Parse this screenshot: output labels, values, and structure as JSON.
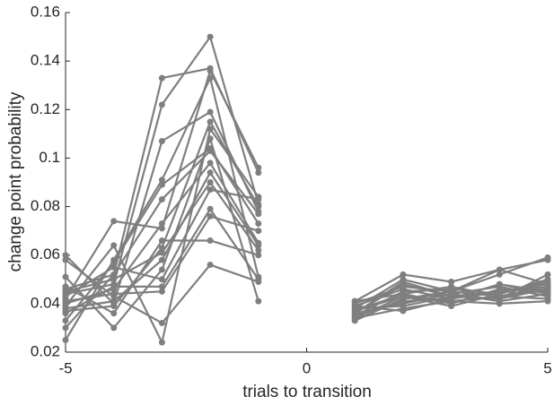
{
  "chart_data": {
    "type": "line",
    "xlabel": "trials to transition",
    "ylabel": "change point probability",
    "x": [
      -5,
      -4,
      -3,
      -2,
      -1,
      0,
      1,
      2,
      3,
      4,
      5
    ],
    "color": "#7f7f7f",
    "xlim": [
      -5,
      5
    ],
    "xticks": [
      -5,
      0,
      5
    ],
    "ylim": [
      0.02,
      0.16
    ],
    "yticks": [
      0.02,
      0.04,
      0.06,
      0.08,
      0.1,
      0.12,
      0.14,
      0.16
    ],
    "grid": false,
    "series": [
      {
        "values": [
          0.046,
          0.052,
          0.133,
          0.137,
          0.094,
          null,
          0.041,
          0.052,
          0.049,
          0.054,
          0.058
        ]
      },
      {
        "values": [
          0.044,
          0.048,
          0.122,
          0.15,
          0.081,
          null,
          0.038,
          0.05,
          0.045,
          0.052,
          0.059
        ]
      },
      {
        "values": [
          0.042,
          0.074,
          0.071,
          0.136,
          0.096,
          null,
          0.036,
          0.048,
          0.043,
          0.042,
          0.052
        ]
      },
      {
        "values": [
          0.06,
          0.04,
          0.107,
          0.119,
          0.078,
          null,
          0.035,
          0.045,
          0.046,
          0.044,
          0.049
        ]
      },
      {
        "values": [
          0.025,
          0.058,
          0.091,
          0.133,
          0.051,
          null,
          0.034,
          0.043,
          0.041,
          0.043,
          0.047
        ]
      },
      {
        "values": [
          0.039,
          0.064,
          0.024,
          0.112,
          0.084,
          null,
          0.037,
          0.044,
          0.04,
          0.046,
          0.045
        ]
      },
      {
        "values": [
          0.051,
          0.03,
          0.054,
          0.108,
          0.041,
          null,
          0.033,
          0.042,
          0.044,
          0.041,
          0.044
        ]
      },
      {
        "values": [
          0.033,
          0.057,
          0.089,
          0.104,
          0.073,
          null,
          0.039,
          0.046,
          0.042,
          0.045,
          0.048
        ]
      },
      {
        "values": [
          0.04,
          0.046,
          0.073,
          0.098,
          0.065,
          null,
          0.036,
          0.04,
          0.044,
          0.047,
          0.043
        ]
      },
      {
        "values": [
          0.038,
          0.041,
          0.058,
          0.094,
          0.064,
          null,
          0.038,
          0.039,
          0.043,
          0.042,
          0.046
        ]
      },
      {
        "values": [
          0.045,
          0.05,
          0.061,
          0.09,
          0.062,
          null,
          0.035,
          0.041,
          0.042,
          0.048,
          0.044
        ]
      },
      {
        "values": [
          0.043,
          0.055,
          0.05,
          0.087,
          0.083,
          null,
          0.04,
          0.047,
          0.045,
          0.043,
          0.042
        ]
      },
      {
        "values": [
          0.036,
          0.047,
          0.047,
          0.079,
          0.05,
          null,
          0.034,
          0.038,
          0.041,
          0.04,
          0.041
        ]
      },
      {
        "values": [
          0.041,
          0.044,
          0.045,
          0.076,
          0.07,
          null,
          0.037,
          0.043,
          0.039,
          0.044,
          0.05
        ]
      },
      {
        "values": [
          0.047,
          0.036,
          0.066,
          0.066,
          0.06,
          null,
          0.036,
          0.049,
          0.043,
          0.045,
          0.047
        ]
      },
      {
        "values": [
          0.058,
          0.043,
          0.032,
          0.056,
          0.049,
          null,
          0.039,
          0.037,
          0.042,
          0.048,
          0.045
        ]
      },
      {
        "values": [
          0.03,
          0.052,
          0.083,
          0.103,
          0.077,
          null,
          0.041,
          0.044,
          0.047,
          0.043,
          0.046
        ]
      },
      {
        "values": [
          0.037,
          0.039,
          0.063,
          0.115,
          0.08,
          null,
          0.033,
          0.042,
          0.045,
          0.054,
          0.048
        ]
      }
    ]
  }
}
